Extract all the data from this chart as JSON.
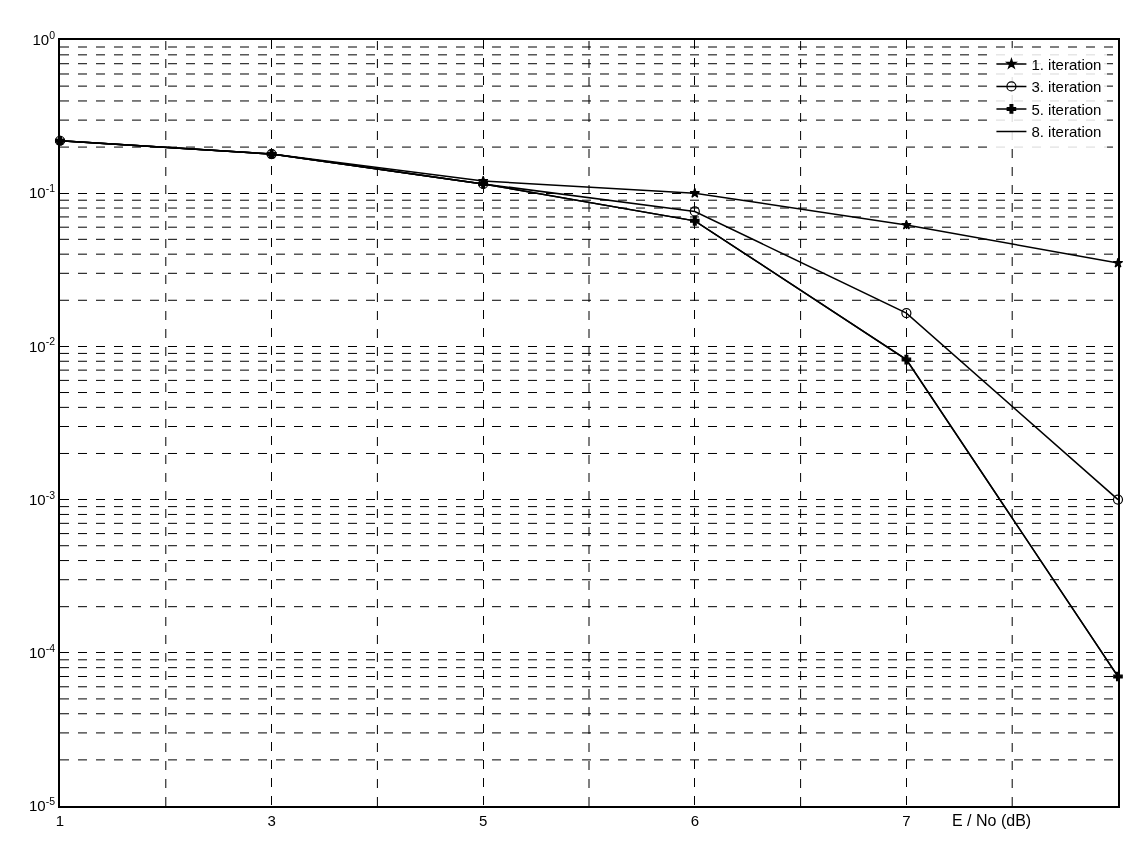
{
  "chart_data": {
    "type": "line",
    "xlabel": "E / No (dB)",
    "categories": [
      "1",
      "3",
      "5",
      "6",
      "7",
      null
    ],
    "log": "y",
    "ylim": [
      1e-05,
      1
    ],
    "yticks": [
      {
        "value": 1,
        "label": "10$^{0}$"
      },
      {
        "value": 0.1,
        "label": "10$^{-1}$"
      },
      {
        "value": 0.01,
        "label": "10$^{-2}$"
      },
      {
        "value": 0.001,
        "label": "10$^{-3}$"
      },
      {
        "value": 0.0001,
        "label": "10$^{-4}$"
      },
      {
        "value": 1e-05,
        "label": "10$^{-5}$"
      }
    ],
    "grid": true,
    "legend": "top right",
    "line_style": "solid",
    "series": [
      {
        "name": "1. iteration",
        "color": "#000000",
        "marker": "star",
        "values": [
          0.22,
          0.18,
          0.12,
          0.1,
          0.062,
          0.035
        ]
      },
      {
        "name": "3. iteration",
        "color": "#000000",
        "marker": "circle",
        "values": [
          0.22,
          0.18,
          0.115,
          0.076,
          0.0165,
          0.001
        ]
      },
      {
        "name": "5. iteration",
        "color": "#000000",
        "marker": "cross",
        "values": [
          0.22,
          0.18,
          0.115,
          0.066,
          0.0082,
          7e-05
        ]
      },
      {
        "name": "8. iteration",
        "color": "#000000",
        "marker": "none",
        "values": [
          0.22,
          0.18,
          0.115,
          0.066,
          0.0082,
          7e-05
        ]
      }
    ]
  }
}
